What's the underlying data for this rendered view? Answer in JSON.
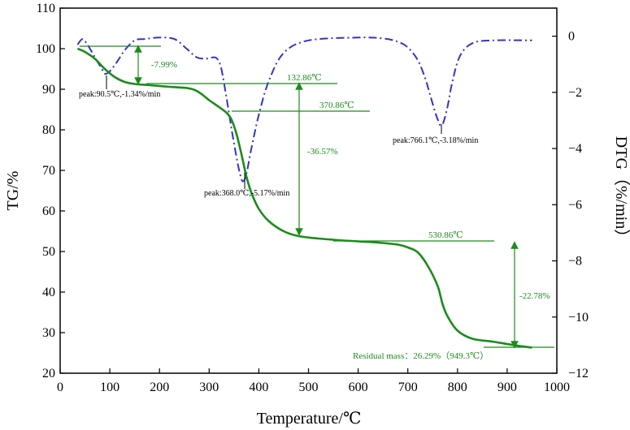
{
  "chart_data": {
    "type": "line",
    "title": "",
    "xlabel": "Temperature/℃",
    "ylabel_left": "TG/%",
    "ylabel_right": "DTG（%/min）",
    "xlim": [
      0,
      1000
    ],
    "ylim_left": [
      20,
      110
    ],
    "ylim_right": [
      -12,
      1
    ],
    "x_ticks": [
      0,
      100,
      200,
      300,
      400,
      500,
      600,
      700,
      800,
      900,
      1000
    ],
    "x_tick_labels": [
      "0",
      "100",
      "200",
      "300",
      "400",
      "500",
      "600",
      "700",
      "800",
      "900",
      "1000"
    ],
    "y_left_ticks": [
      20,
      30,
      40,
      50,
      60,
      70,
      80,
      90,
      100,
      110
    ],
    "y_left_tick_labels": [
      "20",
      "30",
      "40",
      "50",
      "60",
      "70",
      "80",
      "90",
      "100",
      "110"
    ],
    "y_right_ticks": [
      0,
      -2,
      -4,
      -6,
      -8,
      -10,
      -12
    ],
    "y_right_tick_labels": [
      "0",
      "−2",
      "−4",
      "−6",
      "−8",
      "−10",
      "−12"
    ],
    "grid": false,
    "series": [
      {
        "name": "TG",
        "axis": "left",
        "color": "#1a8c1a",
        "style": "solid",
        "x": [
          35,
          50,
          70,
          90,
          110,
          130,
          150,
          180,
          220,
          260,
          280,
          300,
          320,
          335,
          345,
          355,
          365,
          375,
          385,
          400,
          420,
          450,
          480,
          520,
          560,
          600,
          640,
          680,
          700,
          720,
          740,
          760,
          770,
          780,
          800,
          830,
          870,
          910,
          950
        ],
        "y": [
          100,
          99.2,
          97.5,
          95,
          93,
          91.8,
          91.3,
          91,
          90.6,
          90.2,
          89.2,
          87.3,
          85.6,
          84.2,
          82.5,
          79,
          74,
          68.5,
          64.5,
          60.5,
          57.5,
          55,
          53.8,
          53.2,
          52.8,
          52.5,
          52.2,
          51.7,
          51,
          49.8,
          46.5,
          41.5,
          37,
          34,
          30.5,
          28.5,
          27.8,
          27,
          26.3
        ]
      },
      {
        "name": "DTG",
        "axis": "right",
        "color": "#3333cc",
        "style": "dashdot",
        "x": [
          35,
          45,
          55,
          65,
          75,
          85,
          90.5,
          100,
          115,
          130,
          150,
          170,
          200,
          230,
          255,
          275,
          295,
          310,
          318,
          325,
          335,
          345,
          355,
          362,
          368,
          375,
          385,
          400,
          420,
          450,
          500,
          600,
          650,
          680,
          700,
          720,
          735,
          745,
          755,
          762,
          766.1,
          772,
          780,
          790,
          805,
          830,
          870,
          950
        ],
        "y": [
          -0.3,
          -0.1,
          -0.3,
          -0.6,
          -0.9,
          -1.2,
          -1.34,
          -1.25,
          -0.9,
          -0.5,
          -0.15,
          -0.1,
          -0.05,
          -0.1,
          -0.45,
          -0.75,
          -0.8,
          -0.75,
          -0.85,
          -1.2,
          -2.2,
          -3.3,
          -4.3,
          -4.9,
          -5.17,
          -4.9,
          -4.0,
          -2.8,
          -1.6,
          -0.6,
          -0.15,
          -0.05,
          -0.08,
          -0.2,
          -0.4,
          -0.85,
          -1.5,
          -2.1,
          -2.7,
          -3.05,
          -3.18,
          -3.05,
          -2.5,
          -1.6,
          -0.7,
          -0.25,
          -0.15,
          -0.15
        ]
      }
    ],
    "annotations": {
      "temperature_markers": [
        {
          "label": "132.86℃",
          "x": 132.86
        },
        {
          "label": "370.86℃",
          "x": 370.86
        },
        {
          "label": "530.86℃",
          "x": 530.86
        }
      ],
      "mass_losses": [
        {
          "label": "-7.99%",
          "value": -7.99
        },
        {
          "label": "-36.57%",
          "value": -36.57
        },
        {
          "label": "-22.78%",
          "value": -22.78
        }
      ],
      "peaks": [
        {
          "label": "peak:90.5℃,-1.34%/min",
          "x": 90.5,
          "y": -1.34
        },
        {
          "label": "peak:368.0℃,-5.17%/min",
          "x": 368.0,
          "y": -5.17
        },
        {
          "label": "peak:766.1℃,-3.18%/min",
          "x": 766.1,
          "y": -3.18
        }
      ],
      "residual": {
        "label": "Residual mass：26.29%（949.3℃）",
        "value": 26.29,
        "temperature": 949.3
      }
    }
  }
}
